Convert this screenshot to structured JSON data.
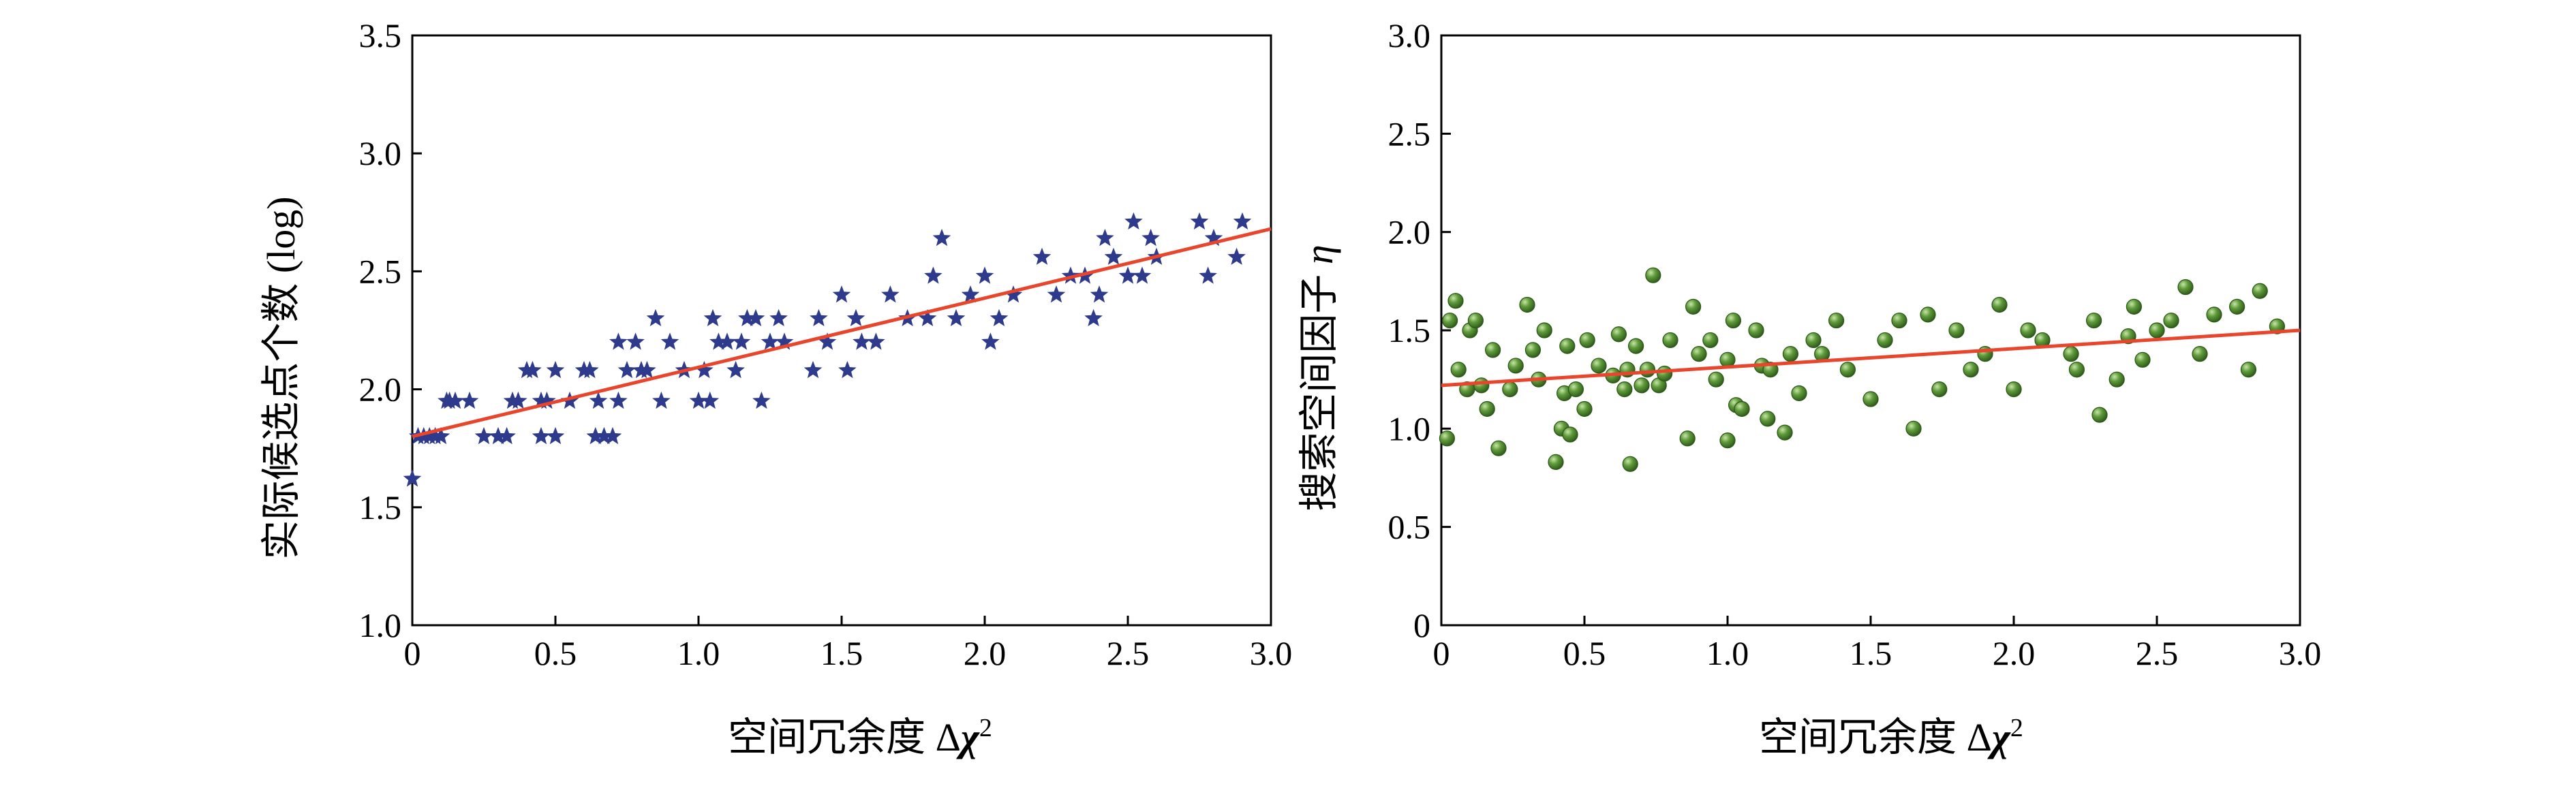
{
  "chart_data": [
    {
      "type": "scatter",
      "title": "",
      "xlabel": "空间冗余度 Δχ²",
      "xlabel_prefix": "空间冗余度 Δ",
      "xlabel_symbol": "χ",
      "xlabel_sup": "2",
      "ylabel": "实际候选点个数 (log)",
      "xlim": [
        0,
        3.0
      ],
      "ylim": [
        1.0,
        3.5
      ],
      "xticks": [
        "0",
        "0.5",
        "1.0",
        "1.5",
        "2.0",
        "2.5",
        "3.0"
      ],
      "yticks": [
        "1.0",
        "1.5",
        "2.0",
        "2.5",
        "3.0",
        "3.5"
      ],
      "marker": "star",
      "marker_color": "#2e3a8c",
      "line_color": "#e8452c",
      "fit_line": [
        [
          0,
          1.8
        ],
        [
          3.0,
          2.68
        ]
      ],
      "x": [
        0.02,
        0.04,
        0.06,
        0.08,
        0.1,
        0.12,
        0.13,
        0.15,
        0.2,
        0.25,
        0.3,
        0.33,
        0.35,
        0.37,
        0.4,
        0.42,
        0.45,
        0.45,
        0.47,
        0.5,
        0.5,
        0.55,
        0.6,
        0.62,
        0.64,
        0.65,
        0.67,
        0.7,
        0.72,
        0.72,
        0.75,
        0.78,
        0.8,
        0.82,
        0.85,
        0.87,
        0.9,
        0.95,
        1.0,
        1.02,
        1.04,
        1.05,
        1.07,
        1.1,
        1.13,
        1.15,
        1.17,
        1.2,
        1.22,
        1.25,
        1.28,
        1.3,
        1.4,
        1.42,
        1.45,
        1.5,
        1.52,
        1.55,
        1.57,
        1.62,
        1.67,
        1.73,
        1.8,
        1.82,
        1.85,
        1.9,
        1.95,
        2.0,
        2.02,
        2.05,
        2.1,
        2.2,
        2.25,
        2.3,
        2.35,
        2.38,
        2.4,
        2.42,
        2.45,
        2.5,
        2.52,
        2.55,
        2.58,
        2.6,
        2.75,
        2.78,
        2.8,
        2.88,
        2.9,
        0.0
      ],
      "y": [
        1.8,
        1.8,
        1.8,
        1.8,
        1.8,
        1.95,
        1.95,
        1.95,
        1.95,
        1.8,
        1.8,
        1.8,
        1.95,
        1.95,
        2.08,
        2.08,
        1.8,
        1.95,
        1.95,
        1.8,
        2.08,
        1.95,
        2.08,
        2.08,
        1.8,
        1.95,
        1.8,
        1.8,
        2.2,
        1.95,
        2.08,
        2.2,
        2.08,
        2.08,
        2.3,
        1.95,
        2.2,
        2.08,
        1.95,
        2.08,
        1.95,
        2.3,
        2.2,
        2.2,
        2.08,
        2.2,
        2.3,
        2.3,
        1.95,
        2.2,
        2.3,
        2.2,
        2.08,
        2.3,
        2.2,
        2.4,
        2.08,
        2.3,
        2.2,
        2.2,
        2.4,
        2.3,
        2.3,
        2.48,
        2.64,
        2.3,
        2.4,
        2.48,
        2.2,
        2.3,
        2.4,
        2.56,
        2.4,
        2.48,
        2.48,
        2.3,
        2.4,
        2.64,
        2.56,
        2.48,
        2.71,
        2.48,
        2.64,
        2.56,
        2.71,
        2.48,
        2.64,
        2.56,
        2.71,
        1.62
      ]
    },
    {
      "type": "scatter",
      "title": "",
      "xlabel": "空间冗余度 Δχ²",
      "xlabel_prefix": "空间冗余度 Δ",
      "xlabel_symbol": "χ",
      "xlabel_sup": "2",
      "ylabel": "搜索空间因子 η",
      "ylabel_prefix": "搜索空间因子 ",
      "ylabel_symbol": "η",
      "xlim": [
        0,
        3.0
      ],
      "ylim": [
        0,
        3.0
      ],
      "xticks": [
        "0",
        "0.5",
        "1.0",
        "1.5",
        "2.0",
        "2.5",
        "3.0"
      ],
      "yticks": [
        "0",
        "0.5",
        "1.0",
        "1.5",
        "2.0",
        "2.5",
        "3.0"
      ],
      "marker": "sphere",
      "marker_color": "#4a7f2e",
      "line_color": "#e8452c",
      "fit_line": [
        [
          0,
          1.22
        ],
        [
          3.0,
          1.5
        ]
      ],
      "x": [
        0.02,
        0.03,
        0.05,
        0.06,
        0.09,
        0.1,
        0.12,
        0.14,
        0.16,
        0.18,
        0.2,
        0.24,
        0.26,
        0.3,
        0.32,
        0.34,
        0.36,
        0.4,
        0.42,
        0.43,
        0.44,
        0.45,
        0.47,
        0.5,
        0.51,
        0.55,
        0.6,
        0.62,
        0.64,
        0.65,
        0.66,
        0.68,
        0.7,
        0.72,
        0.74,
        0.76,
        0.78,
        0.8,
        0.86,
        0.88,
        0.9,
        0.94,
        0.96,
        1.0,
        1.0,
        1.02,
        1.03,
        1.05,
        1.1,
        1.12,
        1.14,
        1.15,
        1.2,
        1.22,
        1.25,
        1.3,
        1.33,
        1.38,
        1.42,
        1.5,
        1.55,
        1.6,
        1.65,
        1.7,
        1.74,
        1.8,
        1.85,
        1.9,
        1.95,
        2.0,
        2.05,
        2.1,
        2.2,
        2.22,
        2.28,
        2.3,
        2.36,
        2.4,
        2.42,
        2.45,
        2.5,
        2.55,
        2.6,
        2.65,
        2.7,
        2.78,
        2.82,
        2.86,
        2.92
      ],
      "y": [
        0.95,
        1.55,
        1.65,
        1.3,
        1.2,
        1.5,
        1.55,
        1.22,
        1.1,
        1.4,
        0.9,
        1.2,
        1.32,
        1.63,
        1.4,
        1.25,
        1.5,
        0.83,
        1.0,
        1.18,
        1.42,
        0.97,
        1.2,
        1.1,
        1.45,
        1.32,
        1.27,
        1.48,
        1.2,
        1.3,
        0.82,
        1.42,
        1.22,
        1.3,
        1.78,
        1.22,
        1.28,
        1.45,
        0.95,
        1.62,
        1.38,
        1.45,
        1.25,
        0.94,
        1.35,
        1.55,
        1.12,
        1.1,
        1.5,
        1.32,
        1.05,
        1.3,
        0.98,
        1.38,
        1.18,
        1.45,
        1.38,
        1.55,
        1.3,
        1.15,
        1.45,
        1.55,
        1.0,
        1.58,
        1.2,
        1.5,
        1.3,
        1.38,
        1.63,
        1.2,
        1.5,
        1.45,
        1.38,
        1.3,
        1.55,
        1.07,
        1.25,
        1.47,
        1.62,
        1.35,
        1.5,
        1.55,
        1.72,
        1.38,
        1.58,
        1.62,
        1.3,
        1.7,
        1.52
      ]
    }
  ]
}
